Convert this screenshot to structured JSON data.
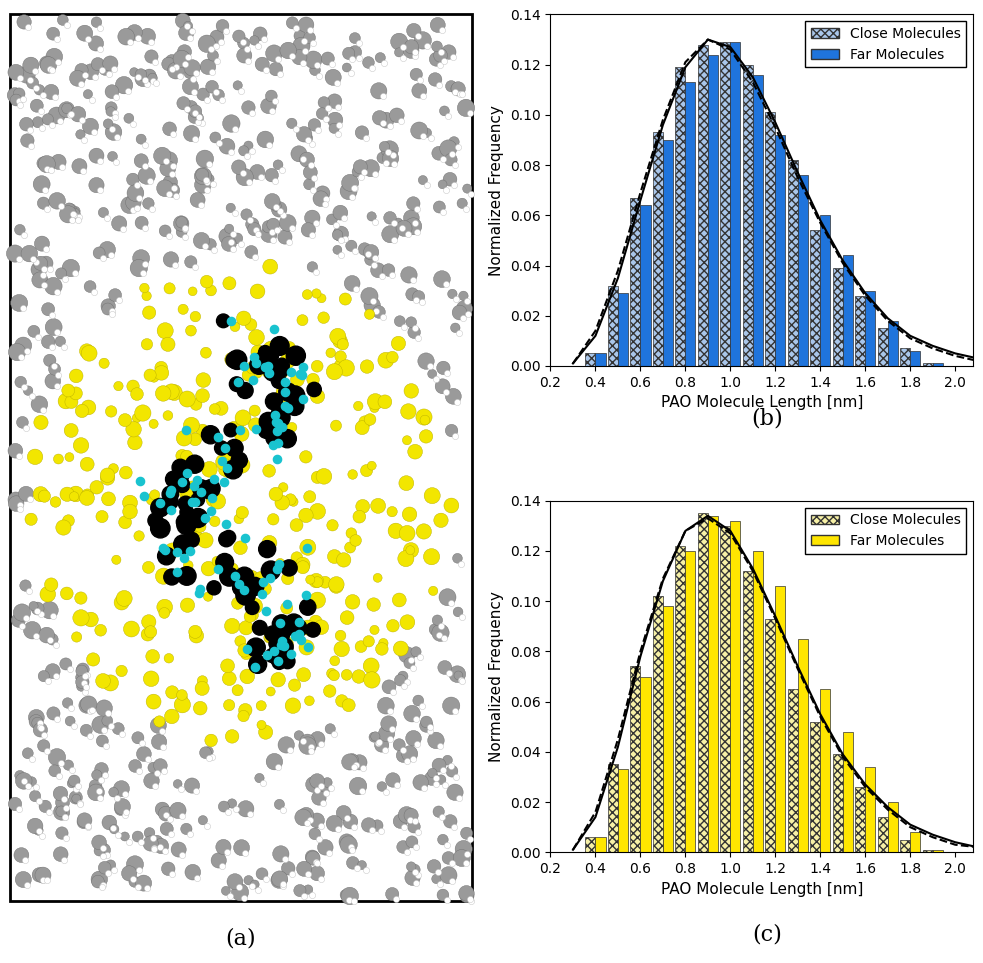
{
  "chart_data": [
    {
      "type": "image",
      "caption": "(a)"
    },
    {
      "type": "bar",
      "caption": "(b)",
      "x_label": "PAO Molecule Length [nm]",
      "y_label": "Normalized Frequency",
      "x": [
        0.4,
        0.5,
        0.6,
        0.7,
        0.8,
        0.9,
        1.0,
        1.1,
        1.2,
        1.3,
        1.4,
        1.5,
        1.6,
        1.7,
        1.8,
        1.9
      ],
      "series": [
        {
          "name": "Close Molecules",
          "type": "bar",
          "color": "#a9c6ea",
          "values": [
            0.005,
            0.032,
            0.067,
            0.093,
            0.119,
            0.128,
            0.129,
            0.12,
            0.101,
            0.082,
            0.054,
            0.039,
            0.028,
            0.015,
            0.007,
            0.001
          ]
        },
        {
          "name": "Far Molecules",
          "type": "bar",
          "color": "#1f74dc",
          "values": [
            0.005,
            0.029,
            0.064,
            0.09,
            0.113,
            0.124,
            0.129,
            0.116,
            0.092,
            0.076,
            0.06,
            0.044,
            0.03,
            0.018,
            0.006,
            0.001
          ]
        },
        {
          "type": "line",
          "color": "#000000",
          "line_style": "solid",
          "x": [
            0.3,
            0.4,
            0.5,
            0.6,
            0.7,
            0.8,
            0.9,
            1.0,
            1.1,
            1.2,
            1.3,
            1.4,
            1.5,
            1.6,
            1.7,
            1.8,
            1.9,
            2.0,
            2.1
          ],
          "values": [
            0.001,
            0.012,
            0.035,
            0.066,
            0.096,
            0.119,
            0.13,
            0.127,
            0.115,
            0.097,
            0.077,
            0.058,
            0.042,
            0.029,
            0.019,
            0.012,
            0.008,
            0.005,
            0.003
          ]
        },
        {
          "type": "line",
          "color": "#000000",
          "line_style": "dashed",
          "x": [
            0.3,
            0.4,
            0.5,
            0.6,
            0.7,
            0.8,
            0.9,
            1.0,
            1.1,
            1.2,
            1.3,
            1.4,
            1.5,
            1.6,
            1.7,
            1.8,
            1.9,
            2.0,
            2.1
          ],
          "values": [
            0.001,
            0.014,
            0.038,
            0.069,
            0.098,
            0.121,
            0.13,
            0.126,
            0.113,
            0.095,
            0.075,
            0.057,
            0.041,
            0.028,
            0.018,
            0.011,
            0.007,
            0.004,
            0.002
          ]
        }
      ],
      "xlim": [
        0.2,
        2.08
      ],
      "xticks": [
        0.2,
        0.4,
        0.6,
        0.8,
        {
          "value": 1.0,
          "label": "1.0"
        },
        1.2,
        1.4,
        1.6,
        1.8,
        {
          "value": 2.0,
          "label": "2.0"
        }
      ],
      "ylim": [
        0,
        0.14
      ],
      "yticks": [
        {
          "value": 0.0,
          "label": "0.00"
        },
        {
          "value": 0.02,
          "label": "0.02"
        },
        {
          "value": 0.04,
          "label": "0.04"
        },
        {
          "value": 0.06,
          "label": "0.06"
        },
        {
          "value": 0.08,
          "label": "0.08"
        },
        {
          "value": 0.1,
          "label": "0.10"
        },
        {
          "value": 0.12,
          "label": "0.12"
        },
        {
          "value": 0.14,
          "label": "0.14"
        }
      ],
      "legend": "upper right"
    },
    {
      "type": "bar",
      "caption": "(c)",
      "x_label": "PAO Molecule Length [nm]",
      "y_label": "Normalized Frequency",
      "x": [
        0.4,
        0.5,
        0.6,
        0.7,
        0.8,
        0.9,
        1.0,
        1.1,
        1.2,
        1.3,
        1.4,
        1.5,
        1.6,
        1.7,
        1.8,
        1.9
      ],
      "series": [
        {
          "name": "Close Molecules",
          "type": "bar",
          "color": "#f7f1a6",
          "values": [
            0.006,
            0.035,
            0.074,
            0.102,
            0.122,
            0.135,
            0.13,
            0.112,
            0.093,
            0.065,
            0.052,
            0.039,
            0.026,
            0.014,
            0.005,
            0.001
          ]
        },
        {
          "name": "Far Molecules",
          "type": "bar",
          "color": "#ffe600",
          "values": [
            0.006,
            0.033,
            0.07,
            0.098,
            0.12,
            0.134,
            0.132,
            0.12,
            0.106,
            0.085,
            0.065,
            0.048,
            0.034,
            0.02,
            0.008,
            0.001
          ]
        },
        {
          "type": "line",
          "color": "#000000",
          "line_style": "solid",
          "x": [
            0.3,
            0.4,
            0.5,
            0.6,
            0.7,
            0.8,
            0.9,
            1.0,
            1.1,
            1.2,
            1.3,
            1.4,
            1.5,
            1.6,
            1.7,
            1.8,
            1.9,
            2.0,
            2.1
          ],
          "values": [
            0.001,
            0.014,
            0.042,
            0.078,
            0.108,
            0.128,
            0.134,
            0.128,
            0.113,
            0.094,
            0.074,
            0.055,
            0.039,
            0.027,
            0.018,
            0.011,
            0.007,
            0.004,
            0.002
          ]
        },
        {
          "type": "line",
          "color": "#000000",
          "line_style": "dashed",
          "x": [
            0.3,
            0.4,
            0.5,
            0.6,
            0.7,
            0.8,
            0.9,
            1.0,
            1.1,
            1.2,
            1.3,
            1.4,
            1.5,
            1.6,
            1.7,
            1.8,
            1.9,
            2.0,
            2.1
          ],
          "values": [
            0.001,
            0.016,
            0.045,
            0.08,
            0.109,
            0.128,
            0.133,
            0.127,
            0.112,
            0.093,
            0.073,
            0.054,
            0.038,
            0.026,
            0.017,
            0.01,
            0.006,
            0.003,
            0.002
          ]
        }
      ],
      "xlim": [
        0.2,
        2.08
      ],
      "xticks": [
        0.2,
        0.4,
        0.6,
        0.8,
        {
          "value": 1.0,
          "label": "1.0"
        },
        1.2,
        1.4,
        1.6,
        1.8,
        {
          "value": 2.0,
          "label": "2.0"
        }
      ],
      "ylim": [
        0,
        0.14
      ],
      "yticks": [
        {
          "value": 0.0,
          "label": "0.00"
        },
        {
          "value": 0.02,
          "label": "0.02"
        },
        {
          "value": 0.04,
          "label": "0.04"
        },
        {
          "value": 0.06,
          "label": "0.06"
        },
        {
          "value": 0.08,
          "label": "0.08"
        },
        {
          "value": 0.1,
          "label": "0.10"
        },
        {
          "value": 0.12,
          "label": "0.12"
        },
        {
          "value": 0.14,
          "label": "0.14"
        }
      ],
      "legend": "upper right"
    }
  ]
}
